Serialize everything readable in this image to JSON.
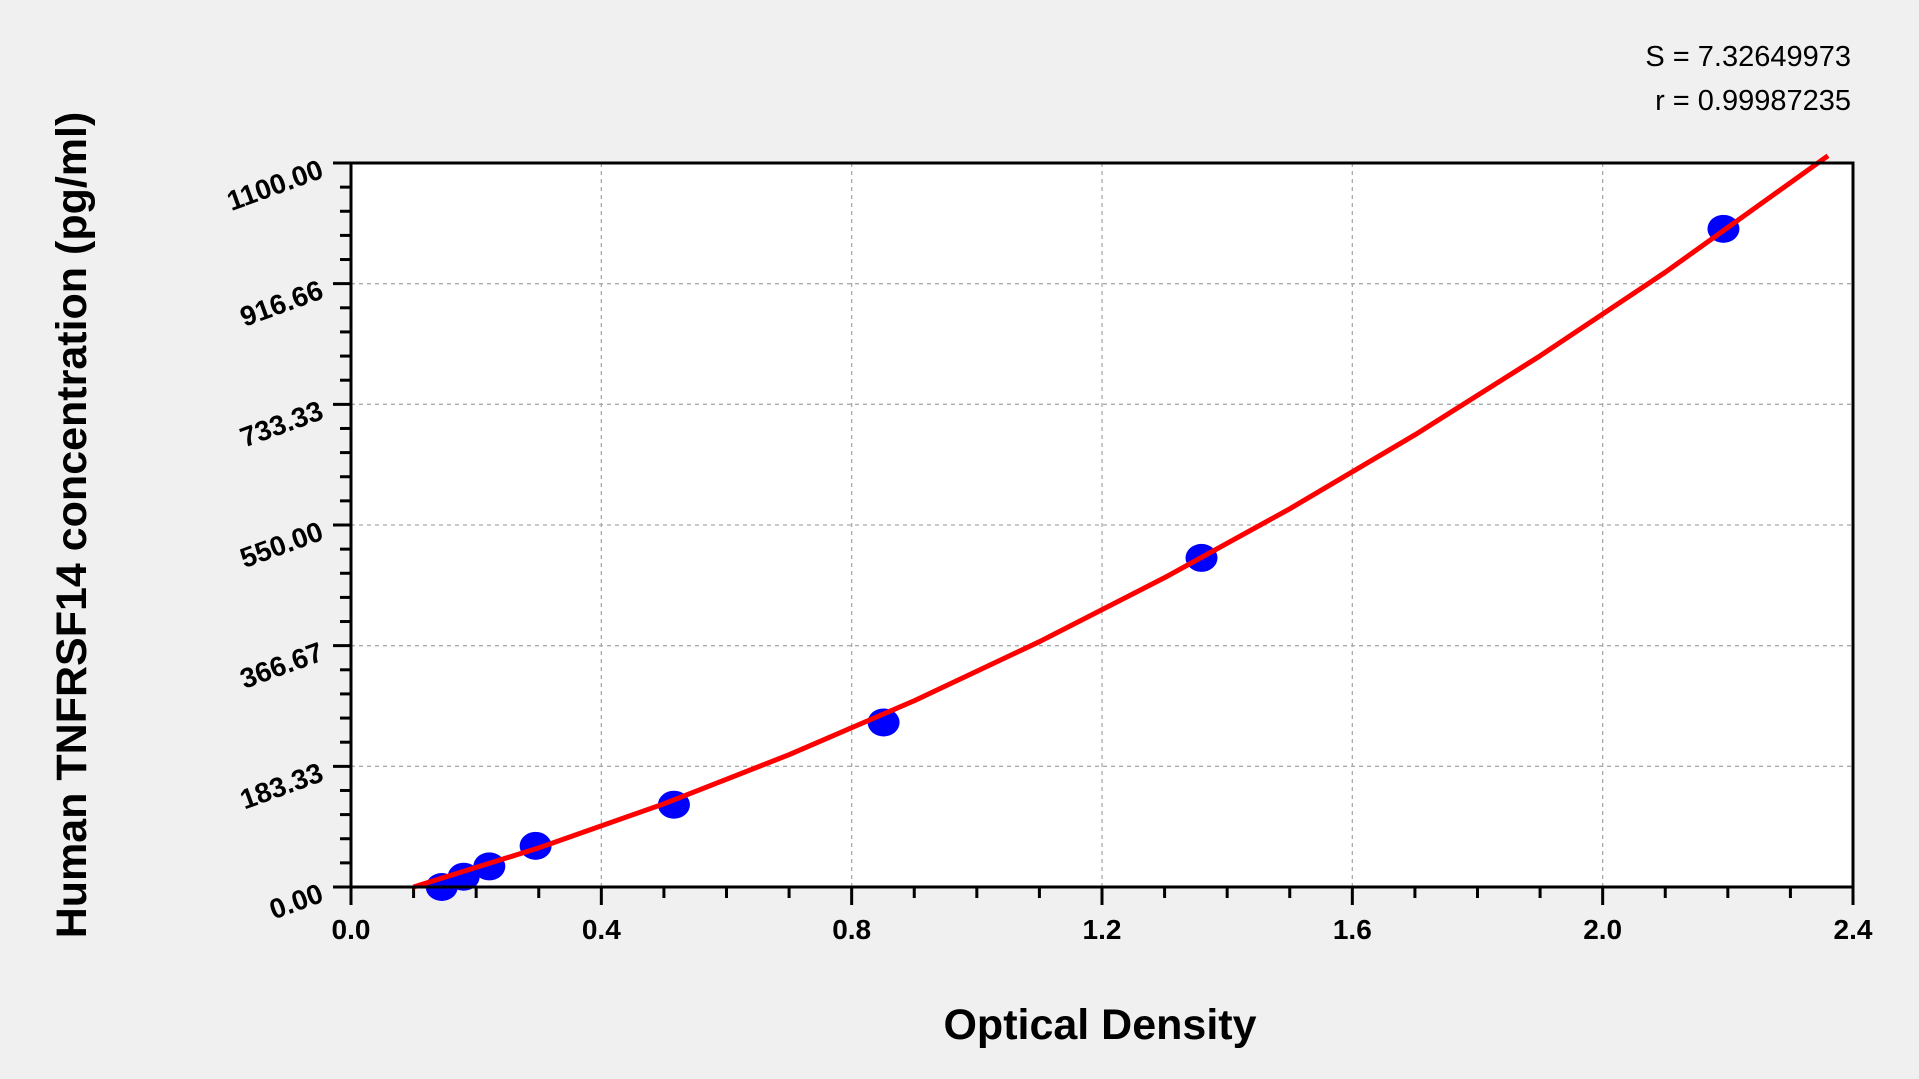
{
  "chart_data": {
    "type": "scatter",
    "title": "",
    "xlabel": "Optical Density",
    "ylabel": "Human TNFRSF14 concentration (pg/ml)",
    "xlim": [
      0,
      2.4
    ],
    "ylim": [
      0,
      1100
    ],
    "x_ticks": [
      "0.0",
      "0.4",
      "0.8",
      "1.2",
      "1.6",
      "2.0",
      "2.4"
    ],
    "y_ticks": [
      "0.00",
      "183.33",
      "366.67",
      "550.00",
      "733.33",
      "916.66",
      "1100.00"
    ],
    "grid": true,
    "annotations": [
      "S = 7.32649973",
      "r = 0.99987235"
    ],
    "points": {
      "x": [
        0.145,
        0.18,
        0.221,
        0.295,
        0.516,
        0.851,
        1.359,
        2.193
      ],
      "y": [
        0,
        15.63,
        31.25,
        62.5,
        125,
        250,
        500,
        1000
      ],
      "color": "#0000ff"
    },
    "fit_curve": {
      "x": [
        0.1,
        0.3,
        0.5,
        0.7,
        0.9,
        1.1,
        1.3,
        1.5,
        1.7,
        1.9,
        2.1,
        2.36
      ],
      "y": [
        0,
        59.5,
        126.4,
        201,
        283,
        372.7,
        470,
        574.6,
        687,
        807,
        934,
        1111
      ],
      "color": "#ff0000"
    }
  }
}
